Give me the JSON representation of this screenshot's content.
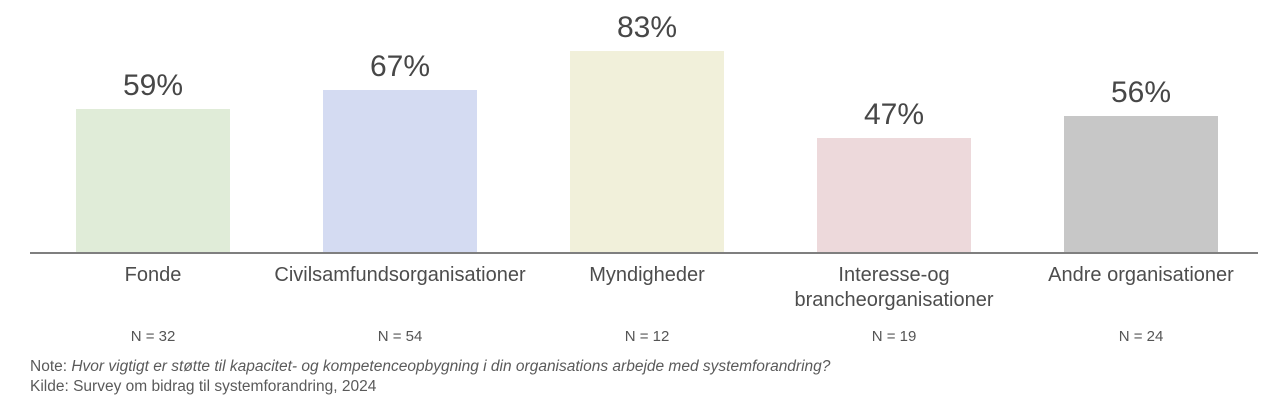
{
  "chart_data": {
    "type": "bar",
    "categories": [
      "Fonde",
      "Civilsamfundsorganisationer",
      "Myndigheder",
      "Interesse-og brancheorganisationer",
      "Andre organisationer"
    ],
    "values": [
      59,
      67,
      83,
      47,
      56
    ],
    "value_labels": [
      "59%",
      "67%",
      "83%",
      "47%",
      "56%"
    ],
    "n_labels": [
      "N = 32",
      "N = 54",
      "N = 12",
      "N = 19",
      "N = 24"
    ],
    "bar_colors": [
      "#e0ecd8",
      "#d4dbf2",
      "#f1f0da",
      "#edd9db",
      "#c7c7c7"
    ],
    "title": "",
    "xlabel": "",
    "ylabel": "",
    "ylim": [
      0,
      100
    ],
    "grid": false,
    "legend": false
  },
  "note": {
    "prefix": "Note: ",
    "question": "Hvor vigtigt er støtte til kapacitet- og kompetenceopbygning i din organisations arbejde med systemforandring?",
    "source": "Kilde: Survey om bidrag til systemforandring, 2024"
  },
  "colors": {
    "axis": "#7f7f7f",
    "value_text": "#474747",
    "category_text": "#4d4d4d",
    "n_text": "#555555",
    "note_text": "#5a5a5a"
  }
}
